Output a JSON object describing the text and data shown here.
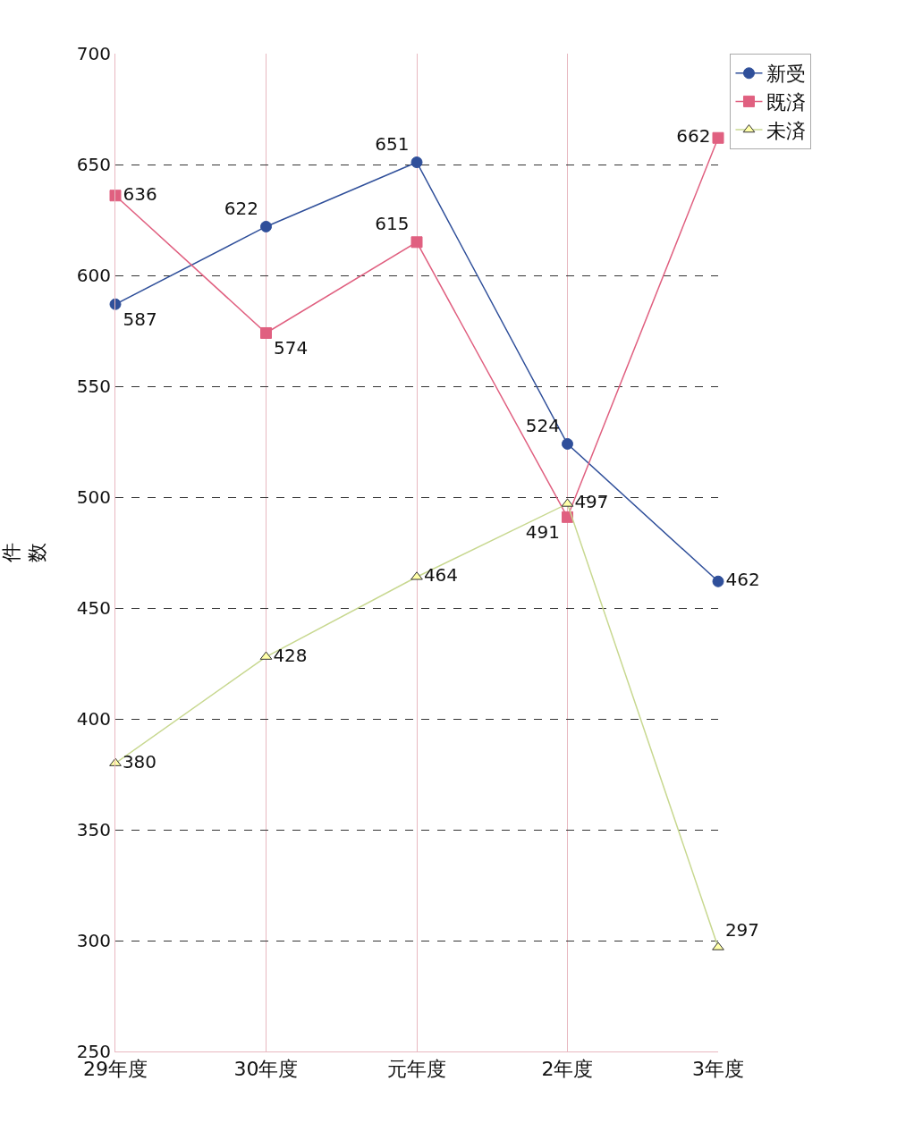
{
  "chart_data": {
    "type": "line",
    "ylabel": "件数",
    "categories": [
      "29年度",
      "30年度",
      "元年度",
      "2年度",
      "3年度"
    ],
    "series": [
      {
        "name": "新受",
        "color": "#2f4f9a",
        "marker": "circle",
        "values": [
          587,
          622,
          651,
          524,
          462
        ]
      },
      {
        "name": "既済",
        "color": "#e06080",
        "marker": "square",
        "values": [
          636,
          574,
          615,
          491,
          662
        ]
      },
      {
        "name": "未済",
        "color": "#c8d890",
        "marker": "triangle",
        "values": [
          380,
          428,
          464,
          497,
          297
        ]
      }
    ],
    "ylim": [
      250,
      700
    ],
    "yticks": [
      250,
      300,
      350,
      400,
      450,
      500,
      550,
      600,
      650,
      700
    ],
    "grid": true,
    "legend": "top right",
    "data_labels": true
  }
}
